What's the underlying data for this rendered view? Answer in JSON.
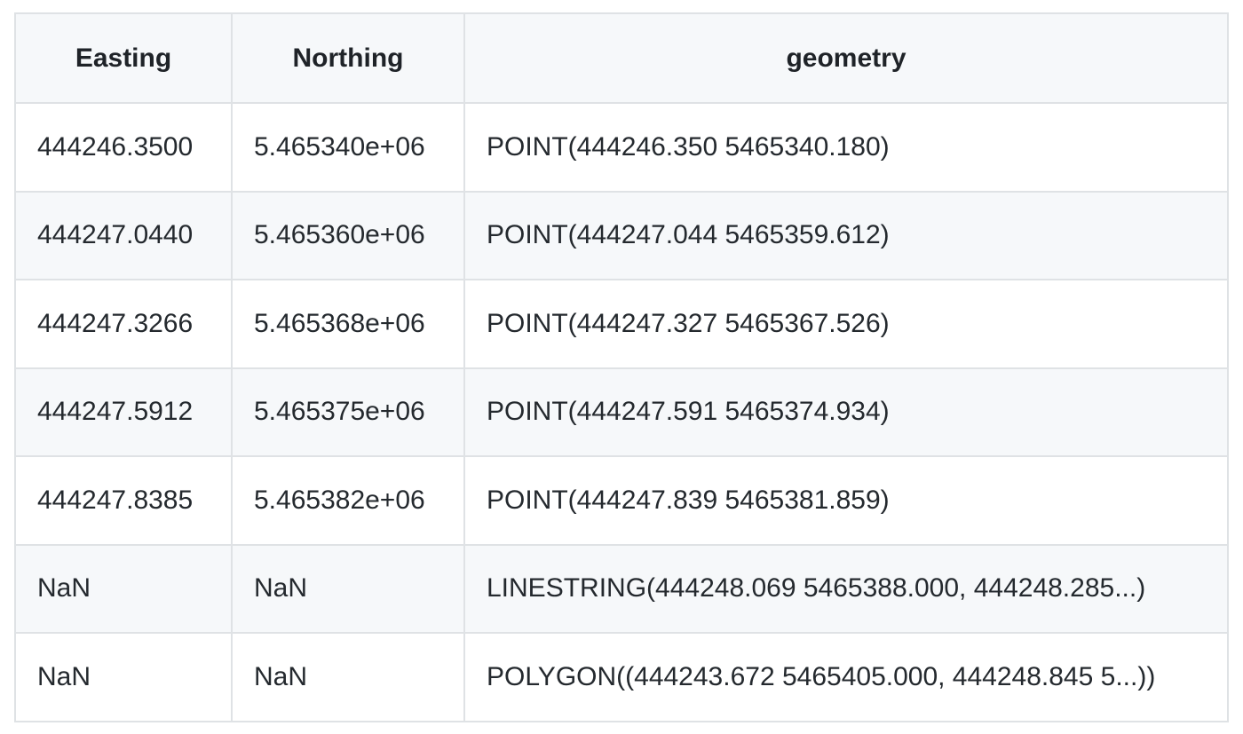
{
  "table": {
    "headers": [
      "Easting",
      "Northing",
      "geometry"
    ],
    "rows": [
      [
        "444246.3500",
        "5.465340e+06",
        "POINT(444246.350 5465340.180)"
      ],
      [
        "444247.0440",
        "5.465360e+06",
        "POINT(444247.044 5465359.612)"
      ],
      [
        "444247.3266",
        "5.465368e+06",
        "POINT(444247.327 5465367.526)"
      ],
      [
        "444247.5912",
        "5.465375e+06",
        "POINT(444247.591 5465374.934)"
      ],
      [
        "444247.8385",
        "5.465382e+06",
        "POINT(444247.839 5465381.859)"
      ],
      [
        "NaN",
        "NaN",
        "LINESTRING(444248.069 5465388.000, 444248.285...)"
      ],
      [
        "NaN",
        "NaN",
        "POLYGON((444243.672 5465405.000, 444248.845 5...))"
      ]
    ]
  },
  "colors": {
    "border": "#dfe2e5",
    "header_bg": "#f6f8fa",
    "stripe_bg": "#f6f8fa",
    "text": "#24292e"
  }
}
